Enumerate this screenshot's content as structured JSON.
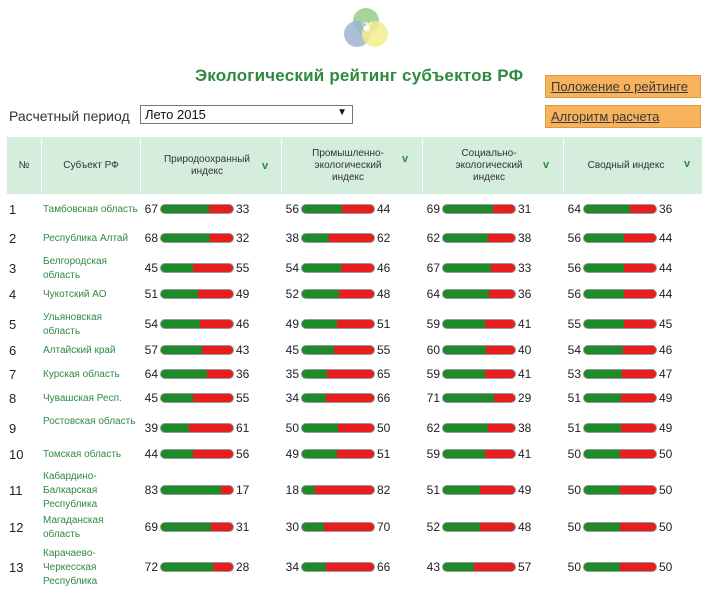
{
  "title": "Экологический рейтинг субъектов РФ",
  "links": {
    "about": "Положение о рейтинге",
    "algorithm": "Алгоритм расчета"
  },
  "period": {
    "label": "Расчетный период",
    "selected": "Лето 2015"
  },
  "columns": {
    "num": "№",
    "subject": "Субъект РФ",
    "nature": "Природоохранный индекс",
    "industrial": "Промышленно-экологический индекс",
    "social": "Социально-экологический индекс",
    "summary": "Сводный индекс",
    "sort_icon": "v"
  },
  "colors": {
    "green": "#1e8a2b",
    "red": "#e81d1d",
    "header": "#d4eddc",
    "accent": "#f6b25c"
  },
  "rows": [
    {
      "n": "1",
      "name": "Тамбовская область",
      "a": [
        "67",
        "33"
      ],
      "b": [
        "56",
        "44"
      ],
      "c": [
        "69",
        "31"
      ],
      "d": [
        "64",
        "36"
      ]
    },
    {
      "n": "2",
      "name": "Республика Алтай",
      "a": [
        "68",
        "32"
      ],
      "b": [
        "38",
        "62"
      ],
      "c": [
        "62",
        "38"
      ],
      "d": [
        "56",
        "44"
      ]
    },
    {
      "n": "3",
      "name": "Белгородская область",
      "a": [
        "45",
        "55"
      ],
      "b": [
        "54",
        "46"
      ],
      "c": [
        "67",
        "33"
      ],
      "d": [
        "56",
        "44"
      ]
    },
    {
      "n": "4",
      "name": "Чукотский АО",
      "a": [
        "51",
        "49"
      ],
      "b": [
        "52",
        "48"
      ],
      "c": [
        "64",
        "36"
      ],
      "d": [
        "56",
        "44"
      ]
    },
    {
      "n": "5",
      "name": "Ульяновская область",
      "a": [
        "54",
        "46"
      ],
      "b": [
        "49",
        "51"
      ],
      "c": [
        "59",
        "41"
      ],
      "d": [
        "55",
        "45"
      ]
    },
    {
      "n": "6",
      "name": "Алтайский край",
      "a": [
        "57",
        "43"
      ],
      "b": [
        "45",
        "55"
      ],
      "c": [
        "60",
        "40"
      ],
      "d": [
        "54",
        "46"
      ]
    },
    {
      "n": "7",
      "name": "Курская область",
      "a": [
        "64",
        "36"
      ],
      "b": [
        "35",
        "65"
      ],
      "c": [
        "59",
        "41"
      ],
      "d": [
        "53",
        "47"
      ]
    },
    {
      "n": "8",
      "name": "Чувашская Респ.",
      "a": [
        "45",
        "55"
      ],
      "b": [
        "34",
        "66"
      ],
      "c": [
        "71",
        "29"
      ],
      "d": [
        "51",
        "49"
      ]
    },
    {
      "n": "9",
      "name": "Ростовская область",
      "a": [
        "39",
        "61"
      ],
      "b": [
        "50",
        "50"
      ],
      "c": [
        "62",
        "38"
      ],
      "d": [
        "51",
        "49"
      ]
    },
    {
      "n": "10",
      "name": "Томская область",
      "a": [
        "44",
        "56"
      ],
      "b": [
        "49",
        "51"
      ],
      "c": [
        "59",
        "41"
      ],
      "d": [
        "50",
        "50"
      ]
    },
    {
      "n": "11",
      "name": "Кабардино-Балкарская Республика",
      "a": [
        "83",
        "17"
      ],
      "b": [
        "18",
        "82"
      ],
      "c": [
        "51",
        "49"
      ],
      "d": [
        "50",
        "50"
      ]
    },
    {
      "n": "12",
      "name": "Магаданская область",
      "a": [
        "69",
        "31"
      ],
      "b": [
        "30",
        "70"
      ],
      "c": [
        "52",
        "48"
      ],
      "d": [
        "50",
        "50"
      ]
    },
    {
      "n": "13",
      "name": "Карачаево-Черкесская Республика",
      "a": [
        "72",
        "28"
      ],
      "b": [
        "34",
        "66"
      ],
      "c": [
        "43",
        "57"
      ],
      "d": [
        "50",
        "50"
      ]
    }
  ]
}
